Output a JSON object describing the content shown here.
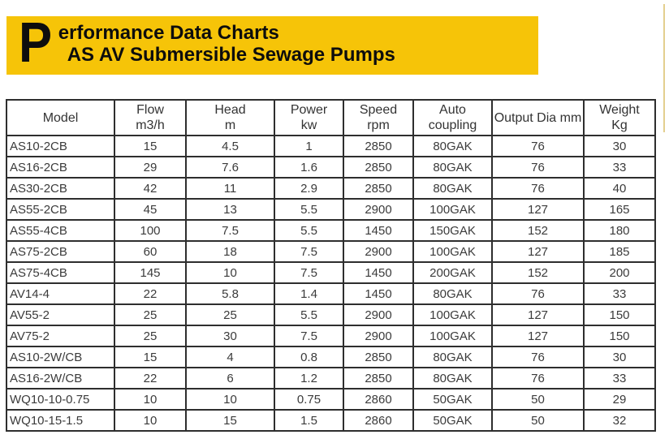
{
  "header": {
    "drop_cap": "P",
    "title_line1": "erformance Data Charts",
    "title_line2": "AS AV Submersible Sewage Pumps",
    "banner_color": "#F6C408",
    "text_color": "#0d0d0d"
  },
  "decor": {
    "edge_line_color": "#e3cf8e"
  },
  "table": {
    "border_color": "#2e2e2e",
    "columns": [
      {
        "line1": "Model",
        "line2": ""
      },
      {
        "line1": "Flow",
        "line2": "m3/h"
      },
      {
        "line1": "Head",
        "line2": "m"
      },
      {
        "line1": "Power",
        "line2": "kw"
      },
      {
        "line1": "Speed",
        "line2": "rpm"
      },
      {
        "line1": "Auto",
        "line2": "coupling"
      },
      {
        "line1": "Output Dia mm",
        "line2": ""
      },
      {
        "line1": "Weight",
        "line2": "Kg"
      }
    ],
    "rows": [
      [
        "AS10-2CB",
        "15",
        "4.5",
        "1",
        "2850",
        "80GAK",
        "76",
        "30"
      ],
      [
        "AS16-2CB",
        "29",
        "7.6",
        "1.6",
        "2850",
        "80GAK",
        "76",
        "33"
      ],
      [
        "AS30-2CB",
        "42",
        "11",
        "2.9",
        "2850",
        "80GAK",
        "76",
        "40"
      ],
      [
        "AS55-2CB",
        "45",
        "13",
        "5.5",
        "2900",
        "100GAK",
        "127",
        "165"
      ],
      [
        "AS55-4CB",
        "100",
        "7.5",
        "5.5",
        "1450",
        "150GAK",
        "152",
        "180"
      ],
      [
        "AS75-2CB",
        "60",
        "18",
        "7.5",
        "2900",
        "100GAK",
        "127",
        "185"
      ],
      [
        "AS75-4CB",
        "145",
        "10",
        "7.5",
        "1450",
        "200GAK",
        "152",
        "200"
      ],
      [
        "AV14-4",
        "22",
        "5.8",
        "1.4",
        "1450",
        "80GAK",
        "76",
        "33"
      ],
      [
        "AV55-2",
        "25",
        "25",
        "5.5",
        "2900",
        "100GAK",
        "127",
        "150"
      ],
      [
        "AV75-2",
        "25",
        "30",
        "7.5",
        "2900",
        "100GAK",
        "127",
        "150"
      ],
      [
        "AS10-2W/CB",
        "15",
        "4",
        "0.8",
        "2850",
        "80GAK",
        "76",
        "30"
      ],
      [
        "AS16-2W/CB",
        "22",
        "6",
        "1.2",
        "2850",
        "80GAK",
        "76",
        "33"
      ],
      [
        "WQ10-10-0.75",
        "10",
        "10",
        "0.75",
        "2860",
        "50GAK",
        "50",
        "29"
      ],
      [
        "WQ10-15-1.5",
        "10",
        "15",
        "1.5",
        "2860",
        "50GAK",
        "50",
        "32"
      ]
    ]
  }
}
